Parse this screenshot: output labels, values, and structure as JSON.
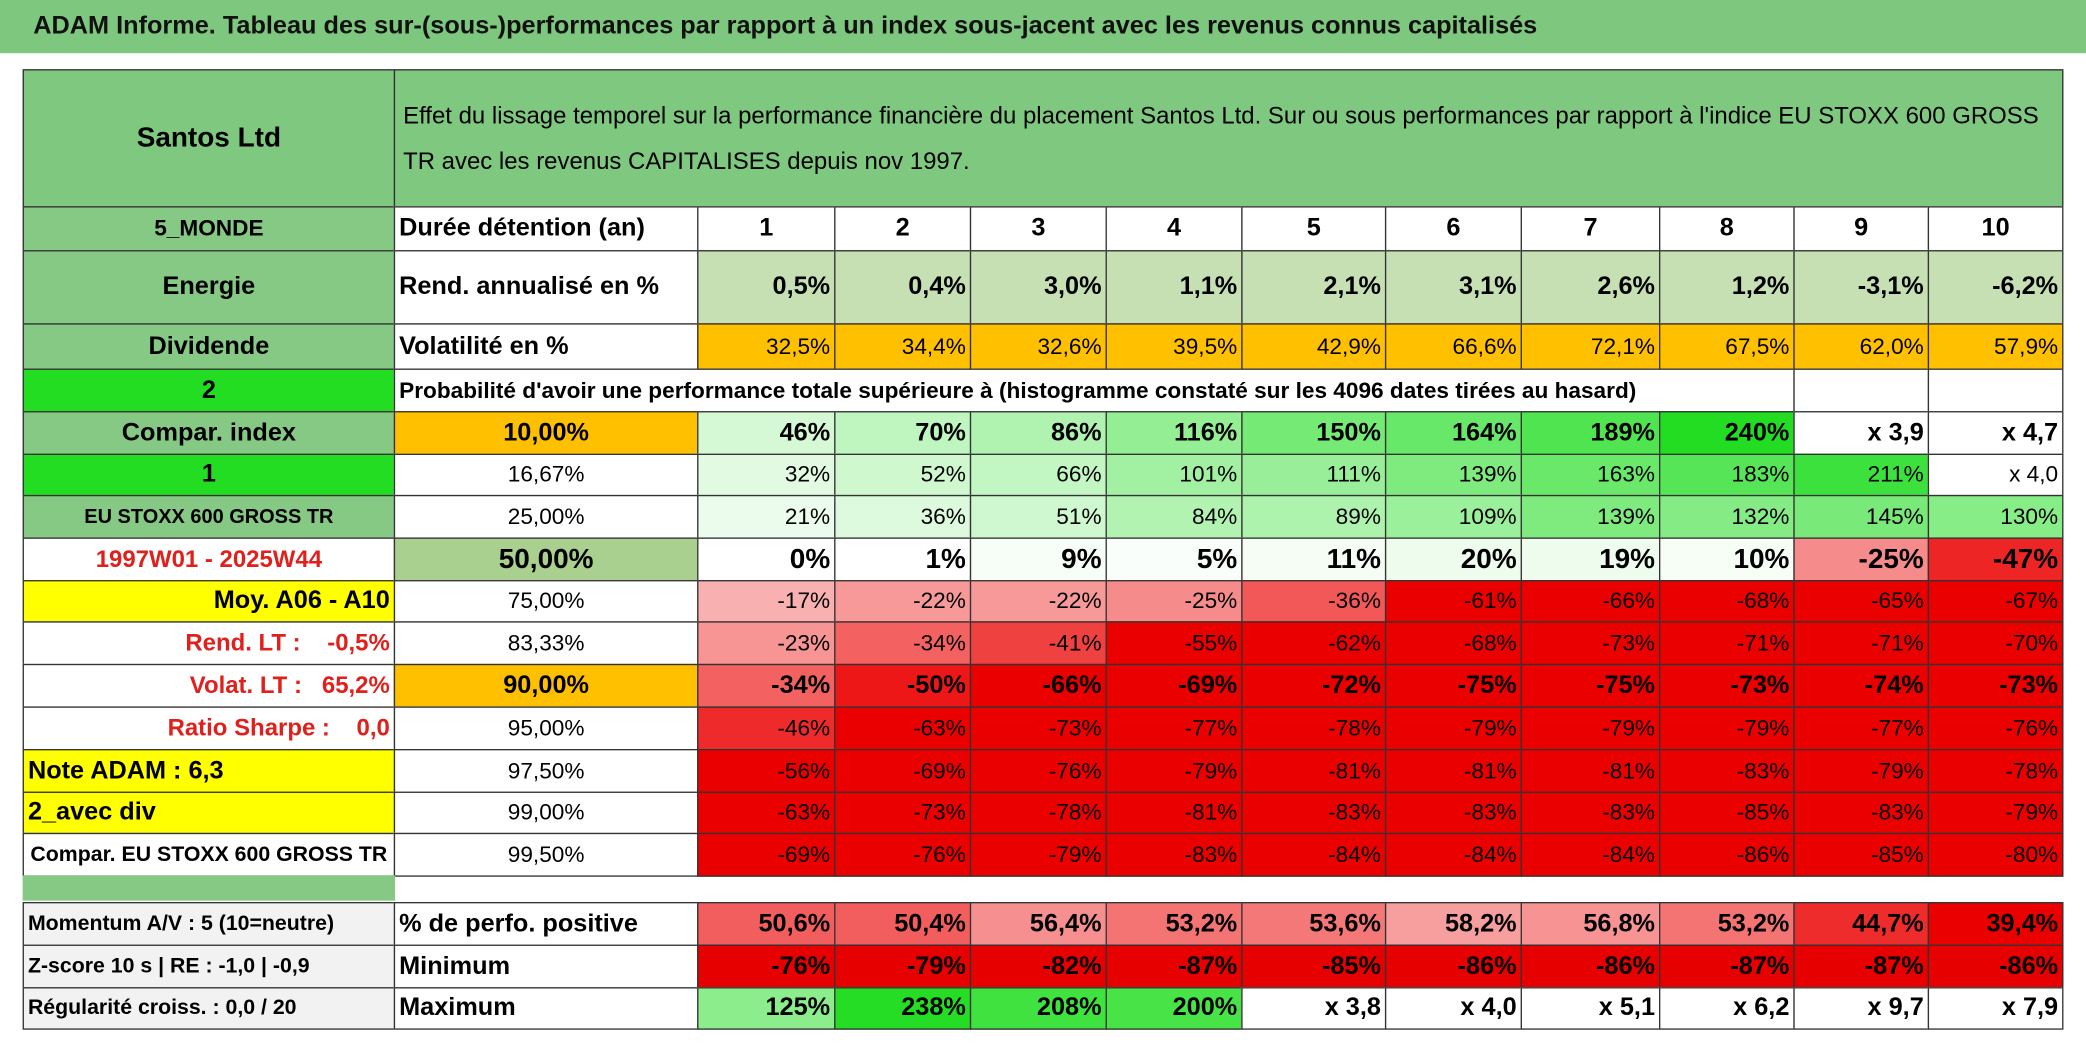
{
  "header": {
    "title": "ADAM Informe. Tableau des sur-(sous-)performances par rapport à un index sous-jacent avec les revenus connus capitalisés"
  },
  "table": {
    "stock": "Santos Ltd",
    "description": "Effet du lissage temporel sur la performance financière du placement Santos Ltd. Sur ou sous performances par rapport à l'indice EU STOXX 600 GROSS TR avec les revenus CAPITALISES depuis nov 1997.",
    "rows": [
      [
        "5_MONDE",
        "Durée détention (an)",
        "1",
        "2",
        "3",
        "4",
        "5",
        "6",
        "7",
        "8",
        "9",
        "10"
      ],
      [
        "Energie",
        "Rend. annualisé en %",
        "0,5%",
        "0,4%",
        "3,0%",
        "1,1%",
        "2,1%",
        "3,1%",
        "2,6%",
        "1,2%",
        "-3,1%",
        "-6,2%"
      ],
      [
        "Dividende",
        "Volatilité en %",
        "32,5%",
        "34,4%",
        "32,6%",
        "39,5%",
        "42,9%",
        "66,6%",
        "72,1%",
        "67,5%",
        "62,0%",
        "57,9%"
      ],
      [
        "2",
        "Probabilité d'avoir une performance totale supérieure à (histogramme constaté sur les 4096 dates tirées au hasard)"
      ],
      [
        "Compar. index",
        "10,00%",
        "46%",
        "70%",
        "86%",
        "116%",
        "150%",
        "164%",
        "189%",
        "240%",
        "x 3,9",
        "x 4,7"
      ],
      [
        "1",
        "16,67%",
        "32%",
        "52%",
        "66%",
        "101%",
        "111%",
        "139%",
        "163%",
        "183%",
        "211%",
        "x 4,0"
      ],
      [
        "EU STOXX 600 GROSS TR",
        "25,00%",
        "21%",
        "36%",
        "51%",
        "84%",
        "89%",
        "109%",
        "139%",
        "132%",
        "145%",
        "130%"
      ],
      [
        "1997W01 - 2025W44",
        "50,00%",
        "0%",
        "1%",
        "9%",
        "5%",
        "11%",
        "20%",
        "19%",
        "10%",
        "-25%",
        "-47%"
      ],
      [
        "Moy. A06 - A10",
        "75,00%",
        "-17%",
        "-22%",
        "-22%",
        "-25%",
        "-36%",
        "-61%",
        "-66%",
        "-68%",
        "-65%",
        "-67%"
      ],
      [
        "Rend. LT :    -0,5%",
        "83,33%",
        "-23%",
        "-34%",
        "-41%",
        "-55%",
        "-62%",
        "-68%",
        "-73%",
        "-71%",
        "-71%",
        "-70%"
      ],
      [
        "Volat. LT :   65,2%",
        "90,00%",
        "-34%",
        "-50%",
        "-66%",
        "-69%",
        "-72%",
        "-75%",
        "-75%",
        "-73%",
        "-74%",
        "-73%"
      ],
      [
        "Ratio Sharpe :    0,0",
        "95,00%",
        "-46%",
        "-63%",
        "-73%",
        "-77%",
        "-78%",
        "-79%",
        "-79%",
        "-79%",
        "-77%",
        "-76%"
      ],
      [
        "Note ADAM : 6,3",
        "97,50%",
        "-56%",
        "-69%",
        "-76%",
        "-79%",
        "-81%",
        "-81%",
        "-81%",
        "-83%",
        "-79%",
        "-78%"
      ],
      [
        "2_avec div",
        "99,00%",
        "-63%",
        "-73%",
        "-78%",
        "-81%",
        "-83%",
        "-83%",
        "-83%",
        "-85%",
        "-83%",
        "-79%"
      ],
      [
        "Compar. EU STOXX 600 GROSS TR",
        "99,50%",
        "-69%",
        "-76%",
        "-79%",
        "-83%",
        "-84%",
        "-84%",
        "-84%",
        "-86%",
        "-85%",
        "-80%"
      ],
      [
        "Momentum A/V : 5 (10=neutre)",
        "% de perfo. positive",
        "50,6%",
        "50,4%",
        "56,4%",
        "53,2%",
        "53,6%",
        "58,2%",
        "56,8%",
        "53,2%",
        "44,7%",
        "39,4%"
      ],
      [
        "Z-score 10 s | RE : -1,0 | -0,9",
        "Minimum",
        "-76%",
        "-79%",
        "-82%",
        "-87%",
        "-85%",
        "-86%",
        "-86%",
        "-87%",
        "-87%",
        "-86%"
      ],
      [
        "Régularité croiss. : 0,0 / 20",
        "Maximum",
        "125%",
        "238%",
        "208%",
        "200%",
        "x 3,8",
        "x 4,0",
        "x 5,1",
        "x 6,2",
        "x 9,7",
        "x 7,9"
      ]
    ]
  }
}
